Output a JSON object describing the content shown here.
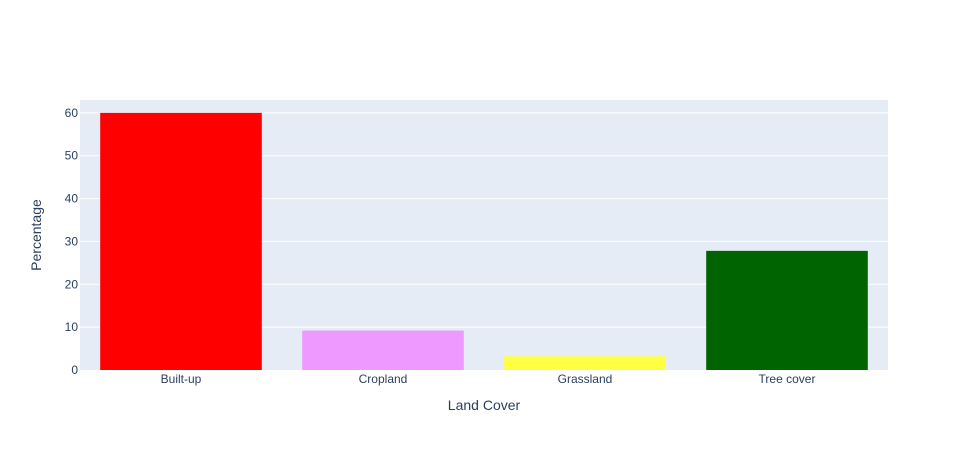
{
  "chart_data": {
    "type": "bar",
    "categories": [
      "Built-up",
      "Cropland",
      "Grassland",
      "Tree cover"
    ],
    "values": [
      60,
      9.2,
      3.2,
      27.8
    ],
    "colors": [
      "#ff0000",
      "#ee99ff",
      "#ffff44",
      "#006400"
    ],
    "title": "",
    "xlabel": "Land Cover",
    "ylabel": "Percentage",
    "ylim": [
      0,
      63
    ],
    "yticks": [
      0,
      10,
      20,
      30,
      40,
      50,
      60
    ],
    "grid": true,
    "plot_background": "#e5ecf6",
    "gridline_color": "#ffffff"
  }
}
